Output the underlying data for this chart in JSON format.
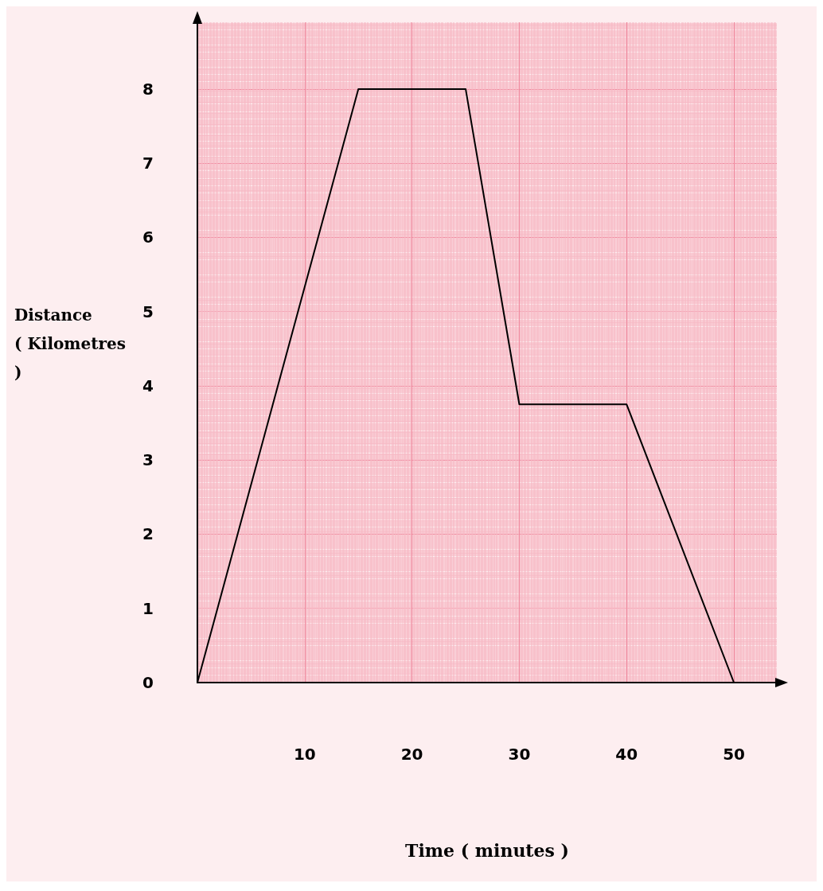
{
  "chart_data": {
    "type": "line",
    "xlabel": "Time ( minutes )",
    "ylabel": "Distance ( Kilometres )",
    "x": [
      0,
      15,
      25,
      30,
      40,
      50
    ],
    "series": [
      {
        "color": "#000000",
        "values": [
          0,
          8,
          8,
          3.75,
          3.75,
          0
        ]
      }
    ],
    "xlim": [
      0,
      54
    ],
    "xticks": [
      10,
      20,
      30,
      40,
      50
    ],
    "ylim": [
      0,
      8.9
    ],
    "yticks": [
      0,
      1,
      2,
      3,
      4,
      5,
      6,
      7,
      8
    ],
    "grid": true,
    "marker": "none",
    "line_style": "solid"
  }
}
